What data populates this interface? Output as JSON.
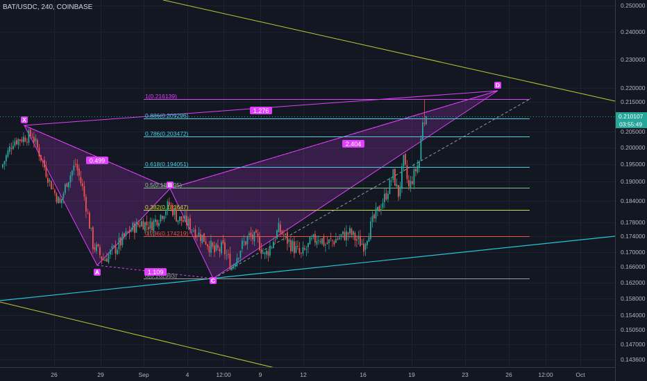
{
  "title": "BAT/USDC, 240, COINBASE",
  "price_axis": {
    "ticks": [
      "0.250000",
      "0.240000",
      "0.230000",
      "0.220000",
      "0.215000",
      "0.205000",
      "0.200000",
      "0.195000",
      "0.190000",
      "0.184000",
      "0.178000",
      "0.174000",
      "0.170000",
      "0.166000",
      "0.162000",
      "0.158000",
      "0.154000",
      "0.150500",
      "0.147000",
      "0.143600"
    ],
    "last_price_label": "0.210107",
    "countdown_label": "03:55:49"
  },
  "time_axis": {
    "labels": [
      "26",
      "29",
      "Sep",
      "4",
      "12:00",
      "9",
      "12",
      "16",
      "19",
      "23",
      "26",
      "12:00",
      "Oct"
    ]
  },
  "fib_levels": [
    {
      "label": "1(0.216139)",
      "color": "#e040fb"
    },
    {
      "label": "0.886(0.209296)",
      "color": "#4dd0e1"
    },
    {
      "label": "0.786(0.203472)",
      "color": "#4dd0e1"
    },
    {
      "label": "0.618(0.194051)",
      "color": "#4dd0e1"
    },
    {
      "label": "0.5(0.187395)",
      "color": "#81c784"
    },
    {
      "label": "0.382(0.181647)",
      "color": "#cddc39"
    },
    {
      "label": "0.236(0.174219)",
      "color": "#ef5350"
    },
    {
      "label": "0(0.162993)",
      "color": "#9e9e9e"
    }
  ],
  "pattern": {
    "points": [
      "X",
      "A",
      "B",
      "C",
      "D"
    ],
    "ratios": [
      "0.499",
      "1.109",
      "1.276",
      "2.404"
    ],
    "color": "#e040fb"
  },
  "colors": {
    "background": "#131722",
    "bull": "#26a69a",
    "bear": "#ef5350",
    "trend_upper": "#c0ca33",
    "trend_support": "#26c6da",
    "grid": "#1e2230"
  },
  "chart_data": {
    "type": "candlestick",
    "symbol": "BAT/USDC",
    "interval": "240",
    "exchange": "COINBASE",
    "ylim": [
      0.1418,
      0.2518
    ],
    "x_ticks": [
      "26",
      "29",
      "Sep",
      "4",
      "12:00",
      "9",
      "12",
      "16",
      "19",
      "23",
      "26",
      "12:00",
      "Oct"
    ],
    "close_anchors": [
      [
        0,
        0.195
      ],
      [
        6,
        0.202
      ],
      [
        12,
        0.203
      ],
      [
        17,
        0.204
      ],
      [
        22,
        0.197
      ],
      [
        27,
        0.19
      ],
      [
        33,
        0.183
      ],
      [
        37,
        0.19
      ],
      [
        42,
        0.195
      ],
      [
        46,
        0.188
      ],
      [
        52,
        0.172
      ],
      [
        58,
        0.168
      ],
      [
        63,
        0.17
      ],
      [
        69,
        0.173
      ],
      [
        74,
        0.176
      ],
      [
        80,
        0.178
      ],
      [
        85,
        0.177
      ],
      [
        91,
        0.18
      ],
      [
        96,
        0.183
      ],
      [
        101,
        0.179
      ],
      [
        106,
        0.178
      ],
      [
        112,
        0.175
      ],
      [
        117,
        0.173
      ],
      [
        122,
        0.17
      ],
      [
        127,
        0.171
      ],
      [
        132,
        0.166
      ],
      [
        137,
        0.171
      ],
      [
        142,
        0.174
      ],
      [
        147,
        0.173
      ],
      [
        151,
        0.169
      ],
      [
        155,
        0.172
      ],
      [
        159,
        0.176
      ],
      [
        164,
        0.173
      ],
      [
        168,
        0.171
      ],
      [
        172,
        0.169
      ],
      [
        177,
        0.172
      ],
      [
        182,
        0.174
      ],
      [
        186,
        0.172
      ],
      [
        191,
        0.173
      ],
      [
        195,
        0.174
      ],
      [
        200,
        0.175
      ],
      [
        204,
        0.173
      ],
      [
        208,
        0.172
      ],
      [
        213,
        0.178
      ],
      [
        217,
        0.182
      ],
      [
        221,
        0.186
      ],
      [
        225,
        0.192
      ],
      [
        228,
        0.186
      ],
      [
        231,
        0.196
      ],
      [
        234,
        0.188
      ],
      [
        237,
        0.192
      ],
      [
        240,
        0.196
      ],
      [
        242,
        0.209
      ],
      [
        244,
        0.21
      ]
    ],
    "last_close": 0.210107,
    "harmonic_pattern": {
      "points": [
        {
          "name": "X",
          "price": 0.209
        },
        {
          "name": "A",
          "price": 0.1665
        },
        {
          "name": "B",
          "price": 0.1875
        },
        {
          "name": "C",
          "price": 0.163
        },
        {
          "name": "D",
          "price": 0.2175
        }
      ],
      "ratios": {
        "XAB": 0.499,
        "ABC": 1.109,
        "XAD": 1.276,
        "BCD": 2.404
      }
    },
    "fibonacci": [
      {
        "ratio": 1,
        "price": 0.216139
      },
      {
        "ratio": 0.886,
        "price": 0.209296
      },
      {
        "ratio": 0.786,
        "price": 0.203472
      },
      {
        "ratio": 0.618,
        "price": 0.194051
      },
      {
        "ratio": 0.5,
        "price": 0.187395
      },
      {
        "ratio": 0.382,
        "price": 0.181647
      },
      {
        "ratio": 0.236,
        "price": 0.174219
      },
      {
        "ratio": 0,
        "price": 0.162993
      }
    ],
    "grid": true
  }
}
